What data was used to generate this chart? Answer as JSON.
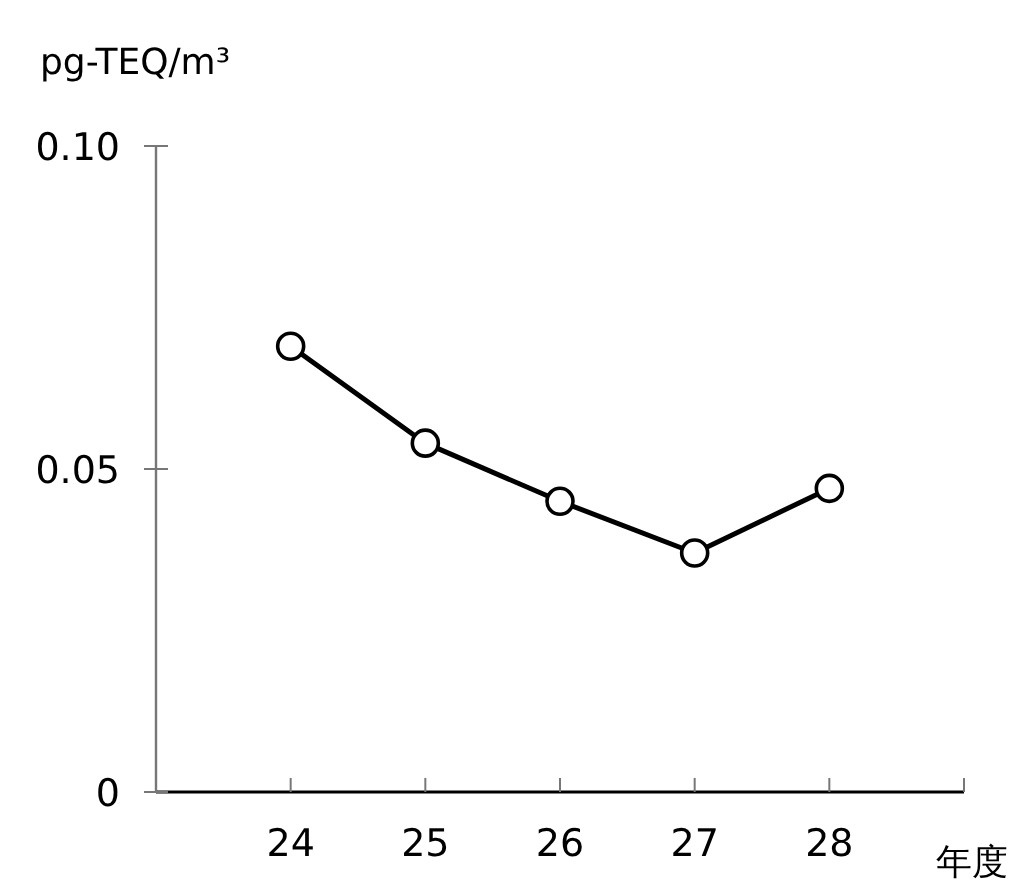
{
  "chart_data": {
    "type": "line",
    "ylabel": "pg-TEQ/m³",
    "xlabel": "年度",
    "categories": [
      "24",
      "25",
      "26",
      "27",
      "28"
    ],
    "values": [
      0.069,
      0.054,
      0.045,
      0.037,
      0.047
    ],
    "color": "#000000",
    "marker": "circle",
    "line_style": "solid",
    "ylim": [
      0,
      0.1
    ],
    "yticks": [
      {
        "value": 0,
        "label": "0"
      },
      {
        "value": 0.05,
        "label": "0.05"
      },
      {
        "value": 0.1,
        "label": "0.10"
      }
    ]
  }
}
